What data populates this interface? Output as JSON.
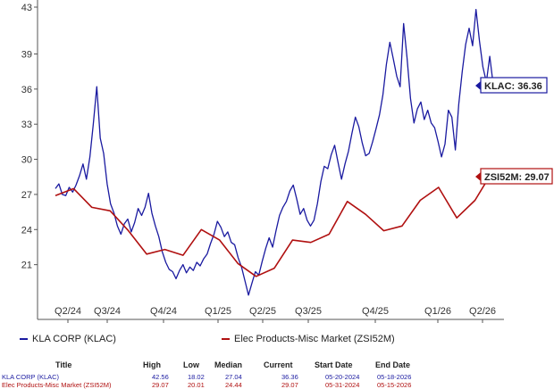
{
  "chart_data": {
    "type": "line",
    "y_ticks": [
      "43",
      "39",
      "36",
      "33",
      "30",
      "27",
      "24",
      "21"
    ],
    "ylim": [
      18,
      43
    ],
    "grid": false,
    "x_labels": [
      "Q2/24",
      "Q3/24",
      "Q4/24",
      "Q1/25",
      "Q2/25",
      "Q3/25",
      "Q4/25",
      "Q1/26",
      "Q2/26"
    ],
    "series": [
      {
        "name": "KLA CORP (KLAC)",
        "color": "#1a1aa0",
        "end_label": "KLAC: 36.36",
        "values": [
          27.5,
          27.9,
          27.0,
          26.9,
          27.6,
          27.2,
          27.8,
          28.6,
          29.6,
          28.3,
          30.2,
          33.0,
          36.2,
          31.8,
          30.5,
          27.9,
          26.2,
          25.4,
          24.3,
          23.6,
          24.5,
          24.9,
          23.8,
          24.6,
          25.8,
          25.2,
          25.9,
          27.1,
          25.4,
          24.3,
          23.4,
          22.1,
          21.2,
          20.6,
          20.4,
          19.8,
          20.5,
          21.0,
          20.3,
          20.8,
          20.5,
          21.2,
          20.9,
          21.5,
          21.9,
          22.8,
          23.6,
          24.7,
          24.2,
          23.4,
          23.8,
          22.9,
          22.7,
          21.6,
          20.8,
          19.6,
          18.4,
          19.4,
          20.4,
          20.1,
          21.3,
          22.4,
          23.3,
          22.5,
          23.9,
          25.2,
          25.9,
          26.4,
          27.3,
          27.8,
          26.6,
          25.3,
          25.8,
          24.8,
          24.3,
          24.8,
          26.2,
          28.1,
          29.4,
          29.2,
          30.4,
          31.2,
          29.7,
          28.3,
          29.6,
          30.7,
          32.2,
          33.6,
          32.8,
          31.4,
          30.3,
          30.5,
          31.5,
          32.6,
          33.8,
          35.5,
          38.1,
          40.0,
          38.6,
          37.1,
          36.2,
          41.6,
          38.7,
          35.2,
          33.1,
          34.3,
          34.9,
          33.4,
          34.2,
          33.1,
          32.7,
          31.5,
          30.2,
          31.3,
          34.2,
          33.6,
          30.8,
          34.7,
          37.5,
          39.8,
          41.2,
          39.7,
          42.8,
          40.1,
          37.9,
          36.6,
          38.8,
          36.36
        ]
      },
      {
        "name": "Elec Products-Misc Market (ZSI52M)",
        "color": "#b01010",
        "end_label": "ZSI52M: 29.07",
        "values": [
          26.9,
          27.5,
          25.9,
          25.6,
          23.9,
          21.9,
          22.3,
          21.8,
          24.0,
          23.1,
          21.1,
          20.0,
          20.7,
          23.1,
          22.9,
          23.6,
          26.4,
          25.3,
          23.9,
          24.3,
          26.5,
          27.6,
          25.0,
          26.5,
          29.07
        ]
      }
    ]
  },
  "legend": {
    "items": [
      {
        "label": "KLA CORP (KLAC)",
        "color": "#1a1aa0"
      },
      {
        "label": "Elec Products-Misc Market (ZSI52M)",
        "color": "#b01010"
      }
    ]
  },
  "stats_table": {
    "headers": [
      "Title",
      "High",
      "Low",
      "Median",
      "Current",
      "Start Date",
      "End Date"
    ],
    "rows": [
      [
        "KLA CORP (KLAC)",
        "42.56",
        "18.02",
        "27.04",
        "36.36",
        "05-20-2024",
        "05-18-2026"
      ],
      [
        "Elec Products-Misc Market (ZSI52M)",
        "29.07",
        "20.01",
        "24.44",
        "29.07",
        "05-31-2024",
        "05-15-2026"
      ]
    ]
  }
}
